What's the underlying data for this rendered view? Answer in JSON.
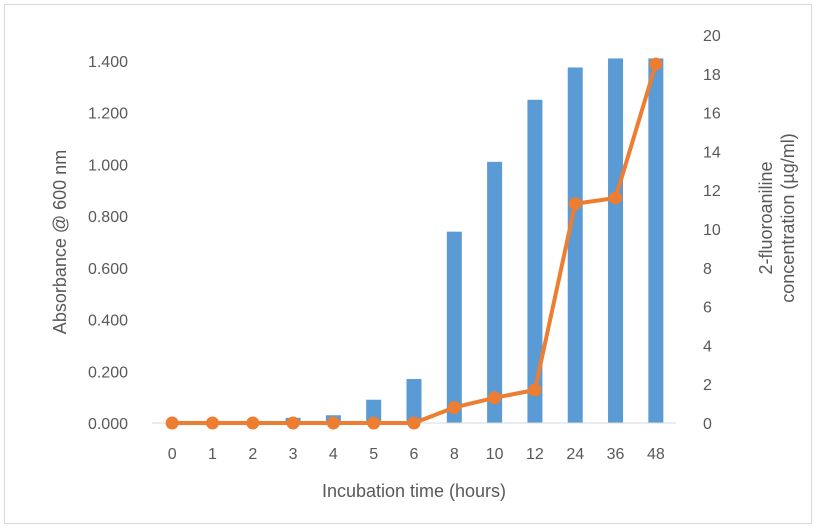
{
  "chart_data": {
    "type": "bar",
    "title": "",
    "categories": [
      "0",
      "1",
      "2",
      "3",
      "4",
      "5",
      "6",
      "8",
      "10",
      "12",
      "24",
      "36",
      "48"
    ],
    "xlabel": "Incubation time (hours)",
    "ylabel": "Absorbance @ 600 nm",
    "y2label_line1": "2-fluoroaniline",
    "y2label_line2": "concentration (µg/ml)",
    "ylim": [
      0,
      1.4
    ],
    "y2lim": [
      0,
      20
    ],
    "yticks": [
      "0.000",
      "0.200",
      "0.400",
      "0.600",
      "0.800",
      "1.000",
      "1.200",
      "1.400"
    ],
    "y2ticks": [
      "0",
      "2",
      "4",
      "6",
      "8",
      "10",
      "12",
      "14",
      "16",
      "18",
      "20"
    ],
    "grid": false,
    "series": [
      {
        "type": "bar",
        "axis": "left",
        "color": "#5b9bd5",
        "values": [
          0.0,
          0.0,
          0.0,
          0.02,
          0.03,
          0.09,
          0.17,
          0.74,
          1.01,
          1.25,
          1.375,
          1.41,
          1.41
        ]
      },
      {
        "type": "line",
        "axis": "right",
        "color": "#ed7d31",
        "values": [
          0,
          0,
          0,
          0,
          0,
          0,
          0,
          0.8,
          1.3,
          1.7,
          11.3,
          11.6,
          18.5
        ]
      }
    ]
  }
}
